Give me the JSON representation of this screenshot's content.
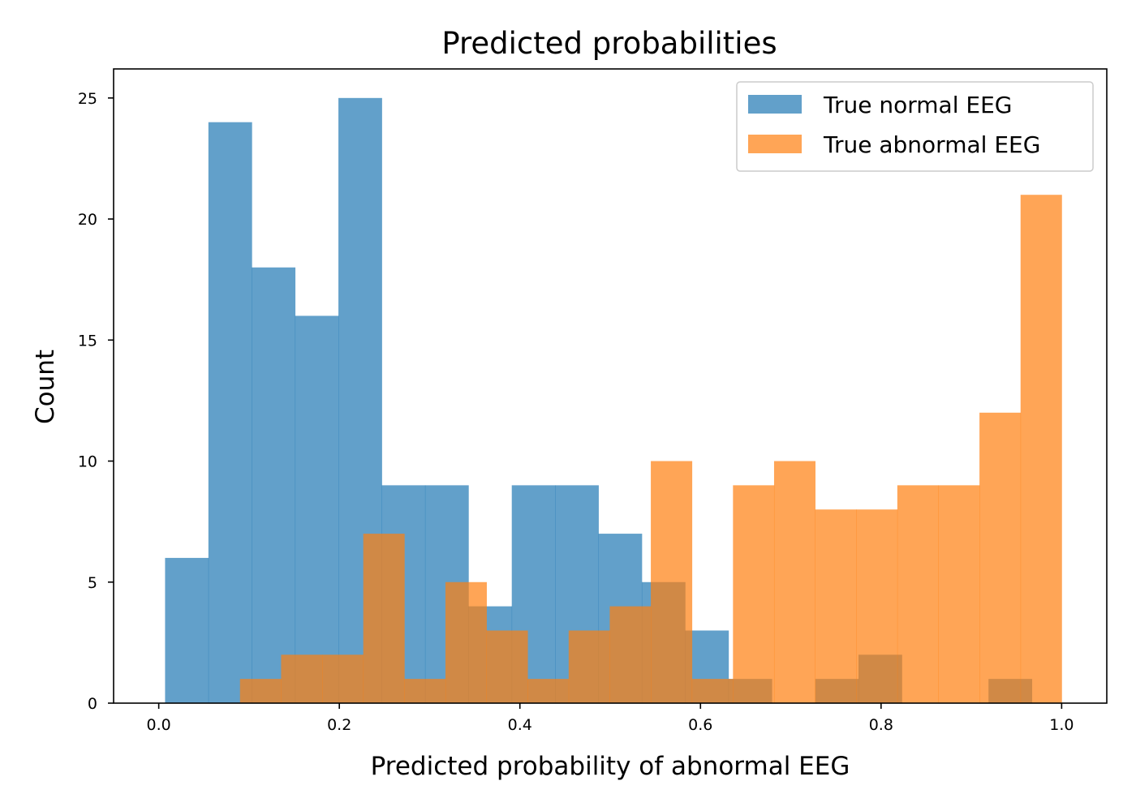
{
  "chart_data": {
    "type": "bar",
    "title": "Predicted probabilities",
    "xlabel": "Predicted probability of abnormal EEG",
    "ylabel": "Count",
    "xlim": [
      -0.05,
      1.05
    ],
    "ylim": [
      0,
      26.2
    ],
    "xticks": [
      "0.0",
      "0.2",
      "0.4",
      "0.6",
      "0.8",
      "1.0"
    ],
    "xtick_values": [
      0.0,
      0.2,
      0.4,
      0.6,
      0.8,
      1.0
    ],
    "yticks": [
      "0",
      "5",
      "10",
      "15",
      "20",
      "25"
    ],
    "ytick_values": [
      0,
      5,
      10,
      15,
      20,
      25
    ],
    "grid": false,
    "legend_position": "top-right",
    "series": [
      {
        "name": "True normal EEG",
        "color": "#1f77b4",
        "opacity": 0.7,
        "bin_edges": [
          0.007,
          0.055,
          0.103,
          0.151,
          0.199,
          0.247,
          0.295,
          0.343,
          0.391,
          0.439,
          0.487,
          0.535,
          0.583,
          0.631,
          0.679,
          0.727,
          0.775,
          0.823,
          0.871,
          0.919,
          0.967
        ],
        "counts": [
          6,
          24,
          18,
          16,
          25,
          9,
          9,
          4,
          9,
          9,
          7,
          5,
          3,
          1,
          0,
          1,
          2,
          0,
          0,
          1
        ]
      },
      {
        "name": "True abnormal EEG",
        "color": "#ff7f0e",
        "opacity": 0.7,
        "bin_edges": [
          0.09,
          0.1355,
          0.181,
          0.2265,
          0.272,
          0.3175,
          0.363,
          0.4085,
          0.454,
          0.4995,
          0.545,
          0.5905,
          0.636,
          0.6815,
          0.727,
          0.7725,
          0.818,
          0.8635,
          0.909,
          0.9545,
          1.0
        ],
        "counts": [
          1,
          2,
          2,
          7,
          1,
          5,
          3,
          1,
          3,
          4,
          10,
          1,
          9,
          10,
          8,
          8,
          9,
          9,
          12,
          21
        ]
      }
    ]
  }
}
